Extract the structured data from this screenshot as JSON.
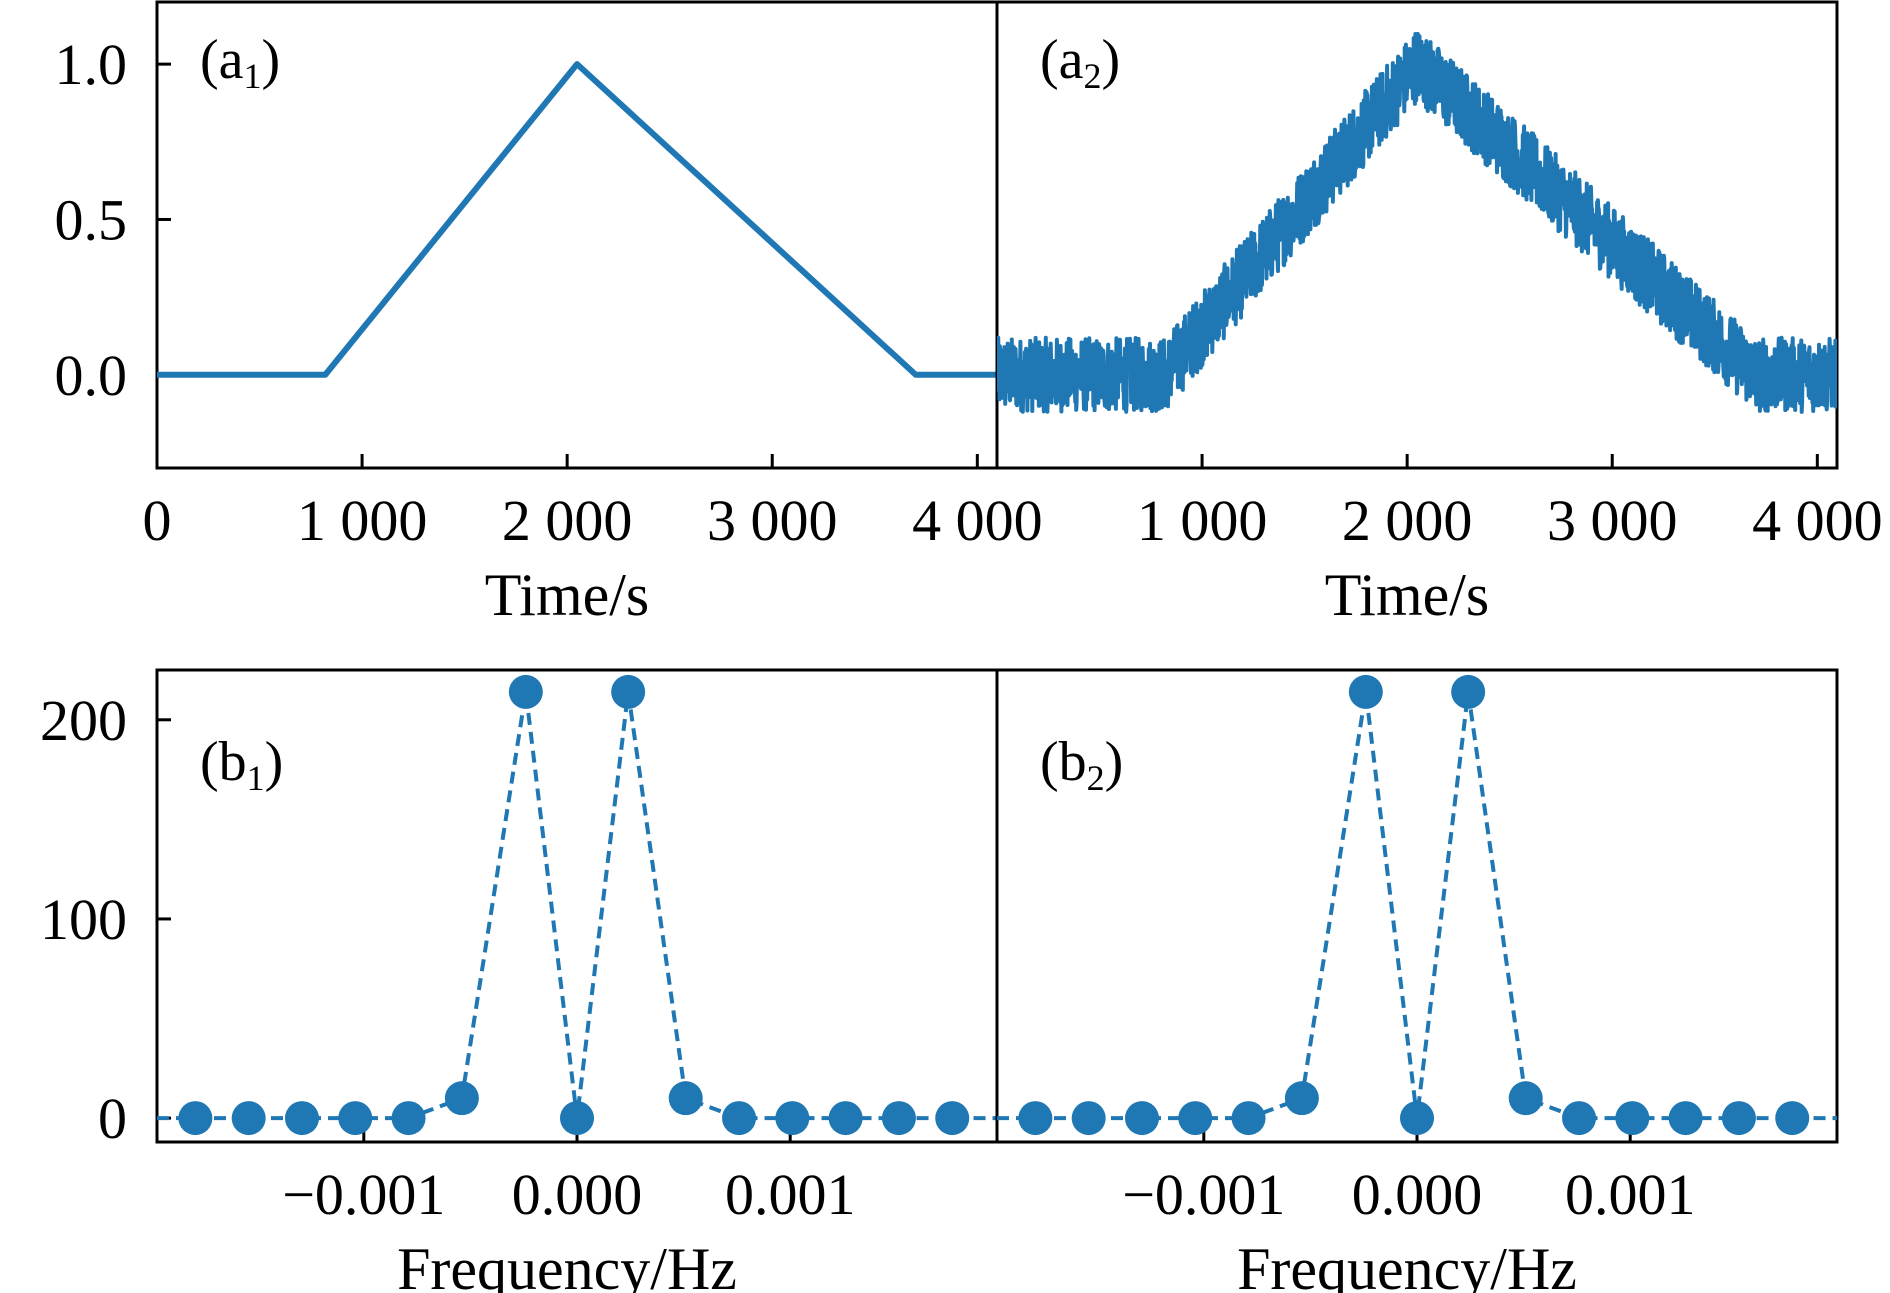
{
  "colors": {
    "series": "#1f77b4",
    "axis": "#000000",
    "background": "#ffffff"
  },
  "chart_data": [
    {
      "panel": "a1",
      "type": "line",
      "label_main": "(a",
      "label_sub": "1",
      "label_close": ")",
      "xlabel": "Time/s",
      "xlim": [
        0,
        4096
      ],
      "ylim": [
        -0.3,
        1.2
      ],
      "xticks": [
        0,
        1000,
        2000,
        3000,
        4000
      ],
      "xtick_labels": [
        "0",
        "1 000",
        "2 000",
        "3 000",
        "4 000"
      ],
      "yticks": [
        0.0,
        0.5,
        1.0
      ],
      "ytick_labels": [
        "0.0",
        "0.5",
        "1.0"
      ],
      "x": [
        0,
        820,
        2048,
        3700,
        4096
      ],
      "y": [
        0,
        0,
        1,
        0,
        0
      ]
    },
    {
      "panel": "a2",
      "type": "line",
      "label_main": "(a",
      "label_sub": "2",
      "label_close": ")",
      "xlabel": "Time/s",
      "xlim": [
        0,
        4096
      ],
      "ylim": [
        -0.3,
        1.2
      ],
      "xticks": [
        1000,
        2000,
        3000,
        4000
      ],
      "xtick_labels": [
        "1 000",
        "2 000",
        "3 000",
        "4 000"
      ],
      "x": [
        0,
        820,
        2048,
        3700,
        4096
      ],
      "y": [
        0,
        0,
        1,
        0,
        0
      ],
      "noise_amplitude": 0.12
    },
    {
      "panel": "b1",
      "type": "scatter",
      "label_main": "(b",
      "label_sub": "1",
      "label_close": ")",
      "xlabel": "Frequency/Hz",
      "xlim": [
        -0.00197,
        0.00197
      ],
      "ylim": [
        -12,
        225
      ],
      "xticks": [
        -0.001,
        0.0,
        0.001
      ],
      "xtick_labels": [
        "−0.001",
        "0.000",
        "0.001"
      ],
      "yticks": [
        0,
        100,
        200
      ],
      "ytick_labels": [
        "0",
        "100",
        "200"
      ],
      "x": [
        -0.00179,
        -0.00154,
        -0.00129,
        -0.00104,
        -0.00079,
        -0.00054,
        -0.00024,
        0.0,
        0.00024,
        0.00051,
        0.00076,
        0.00101,
        0.00126,
        0.00151,
        0.00176
      ],
      "y": [
        0,
        0,
        0,
        0,
        0,
        10,
        214,
        0,
        214,
        10,
        0,
        0,
        0,
        0,
        0
      ]
    },
    {
      "panel": "b2",
      "type": "scatter",
      "label_main": "(b",
      "label_sub": "2",
      "label_close": ")",
      "xlabel": "Frequency/Hz",
      "xlim": [
        -0.00197,
        0.00197
      ],
      "ylim": [
        -12,
        225
      ],
      "xticks": [
        -0.001,
        0.0,
        0.001
      ],
      "xtick_labels": [
        "−0.001",
        "0.000",
        "0.001"
      ],
      "x": [
        -0.00179,
        -0.00154,
        -0.00129,
        -0.00104,
        -0.00079,
        -0.00054,
        -0.00024,
        0.0,
        0.00024,
        0.00051,
        0.00076,
        0.00101,
        0.00126,
        0.00151,
        0.00176
      ],
      "y": [
        0,
        0,
        0,
        0,
        0,
        10,
        214,
        0,
        214,
        10,
        0,
        0,
        0,
        0,
        0
      ]
    }
  ]
}
